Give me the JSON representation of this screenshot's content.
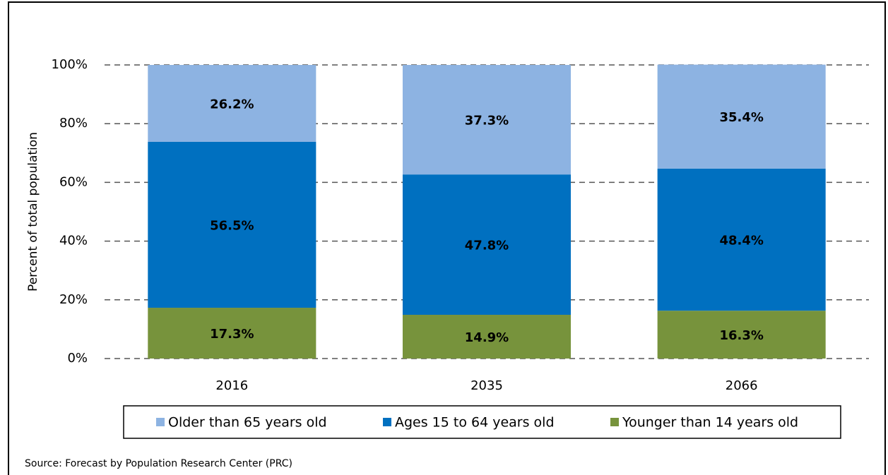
{
  "chart_data": {
    "type": "stacked_bar",
    "y_label": "Percent of total population",
    "categories": [
      "2016",
      "2035",
      "2066"
    ],
    "series": [
      {
        "name": "Older than 65 years old",
        "color": "#8db3e2",
        "values": [
          26.2,
          37.3,
          35.4
        ],
        "value_labels": [
          "26.2%",
          "37.3%",
          "35.4%"
        ]
      },
      {
        "name": "Ages 15 to 64 years old",
        "color": "#0070c0",
        "values": [
          56.5,
          47.8,
          48.4
        ],
        "value_labels": [
          "56.5%",
          "47.8%",
          "48.4%"
        ]
      },
      {
        "name": "Younger than 14 years old",
        "color": "#77933c",
        "values": [
          17.3,
          14.9,
          16.3
        ],
        "value_labels": [
          "17.3%",
          "14.9%",
          "16.3%"
        ]
      }
    ],
    "ylim": [
      0,
      100
    ],
    "yticks": [
      {
        "value": 0,
        "label": "0%"
      },
      {
        "value": 20,
        "label": "20%"
      },
      {
        "value": 40,
        "label": "40%"
      },
      {
        "value": 60,
        "label": "60%"
      },
      {
        "value": 80,
        "label": "80%"
      },
      {
        "value": 100,
        "label": "100%"
      }
    ],
    "grid": true,
    "legend": "bottom",
    "source": "Source: Forecast by Population Research Center (PRC)"
  }
}
